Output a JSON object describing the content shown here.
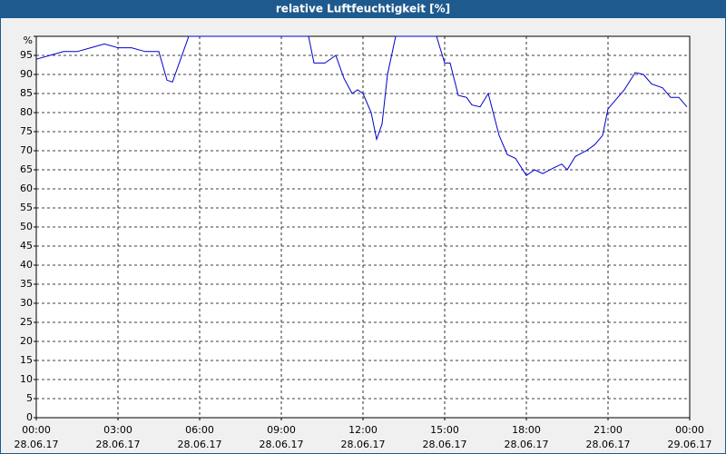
{
  "chart_data": {
    "type": "line",
    "title": "relative Luftfeuchtigkeit [%]",
    "x": [
      0,
      0.5,
      1,
      1.5,
      2,
      2.5,
      3,
      3.5,
      4,
      4.5,
      4.8,
      5,
      5.3,
      5.6,
      6,
      9.8,
      10,
      10.2,
      10.6,
      11,
      11.3,
      11.6,
      11.8,
      12,
      12.3,
      12.5,
      12.7,
      12.9,
      13.2,
      14.7,
      15,
      15.2,
      15.5,
      15.8,
      16,
      16.3,
      16.6,
      17,
      17.3,
      17.6,
      18,
      18.3,
      18.6,
      19,
      19.3,
      19.5,
      19.8,
      20.2,
      20.5,
      20.8,
      21,
      21.3,
      21.6,
      22,
      22.3,
      22.6,
      23,
      23.3,
      23.6,
      23.9
    ],
    "series": [
      {
        "name": "relative Luftfeuchtigkeit",
        "color": "#0000cc",
        "values": [
          94,
          95,
          96,
          96,
          97,
          98,
          97,
          97,
          96,
          96,
          88.5,
          88,
          94,
          100,
          100,
          100,
          100,
          93,
          93,
          95,
          89,
          85,
          86,
          85,
          80,
          73,
          77,
          90,
          100,
          100,
          93,
          93,
          84.5,
          84,
          82,
          81.5,
          85,
          74,
          69,
          68,
          63.5,
          65,
          64,
          65.5,
          66.5,
          65,
          68.5,
          70,
          71.5,
          74,
          81,
          83.5,
          86,
          90.5,
          90,
          87.5,
          86.5,
          84,
          84,
          81.5
        ]
      }
    ],
    "xlim": [
      0,
      24
    ],
    "xticks": [
      {
        "value": 0,
        "label": "00:00"
      },
      {
        "value": 3,
        "label": "03:00"
      },
      {
        "value": 6,
        "label": "06:00"
      },
      {
        "value": 9,
        "label": "09:00"
      },
      {
        "value": 12,
        "label": "12:00"
      },
      {
        "value": 15,
        "label": "15:00"
      },
      {
        "value": 18,
        "label": "18:00"
      },
      {
        "value": 21,
        "label": "21:00"
      },
      {
        "value": 24,
        "label": "00:00"
      }
    ],
    "xtick_dates": [
      "28.06.17",
      "28.06.17",
      "28.06.17",
      "28.06.17",
      "28.06.17",
      "28.06.17",
      "28.06.17",
      "28.06.17",
      "29.06.17"
    ],
    "ylim": [
      0,
      100
    ],
    "yticks": [
      0,
      5,
      10,
      15,
      20,
      25,
      30,
      35,
      40,
      45,
      50,
      55,
      60,
      65,
      70,
      75,
      80,
      85,
      90,
      95,
      {
        "value": 100,
        "label": "%"
      }
    ],
    "grid": true
  }
}
